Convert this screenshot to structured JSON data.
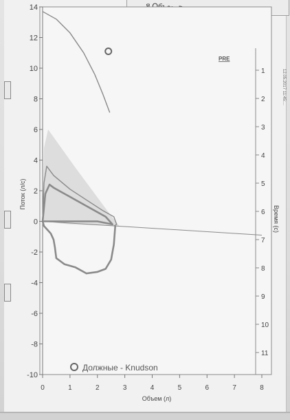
{
  "window": {
    "tab_title": "я Объем Время",
    "edge_text": "12.05.2017 11:45:...",
    "pre_label": "PRE"
  },
  "chart_data": {
    "type": "line",
    "xlabel": "Объем (л)",
    "ylabel": "Поток (л/с)",
    "y2label": "Время (с)",
    "xlim": [
      0,
      8
    ],
    "ylim": [
      -10,
      14
    ],
    "y2lim": [
      0,
      12
    ],
    "x_ticks": [
      "0",
      "1",
      "2",
      "3",
      "4",
      "5",
      "6",
      "7",
      "8"
    ],
    "y_ticks": [
      "-10",
      "-8",
      "-6",
      "-4",
      "-2",
      "0",
      "2",
      "4",
      "6",
      "8",
      "10",
      "12",
      "14"
    ],
    "y2_ticks": [
      "1",
      "2",
      "3",
      "4",
      "5",
      "6",
      "7",
      "8",
      "9",
      "10",
      "11"
    ],
    "legend": {
      "label": "Должные - Knudson",
      "placement": "bottom-left"
    },
    "colors": {
      "curve": "#8a8a8a",
      "fill": "#c8c8c8",
      "predicted_marker": "#666666"
    },
    "predicted_point": {
      "x": 2.4,
      "y": 11.1
    },
    "series": [
      {
        "type": "line",
        "x": [
          0.0,
          0.5,
          1.0,
          1.5,
          1.9,
          2.2,
          2.45
        ],
        "y": [
          13.7,
          13.2,
          12.3,
          11.0,
          9.6,
          8.3,
          7.1
        ]
      },
      {
        "type": "area",
        "x": [
          0.0,
          0.05,
          0.2,
          1.2,
          2.4,
          2.8,
          1.0,
          0.0
        ],
        "y": [
          0.0,
          4.8,
          6.0,
          3.5,
          0.6,
          -0.3,
          -0.2,
          0.0
        ]
      },
      {
        "type": "line",
        "x": [
          0.0,
          0.1,
          0.25,
          0.4,
          0.7,
          1.0,
          1.5,
          2.0,
          2.3,
          2.55,
          2.0,
          1.0,
          0.2,
          0.0
        ],
        "y": [
          0.0,
          1.8,
          2.4,
          2.2,
          1.9,
          1.6,
          1.1,
          0.6,
          0.3,
          -0.2,
          0.0,
          0.0,
          0.0,
          0.0
        ]
      },
      {
        "type": "line",
        "x": [
          0.0,
          0.05,
          0.15,
          0.4,
          1.0,
          1.6,
          2.2,
          2.6,
          2.7,
          2.6
        ],
        "y": [
          0.0,
          2.5,
          3.6,
          3.0,
          2.1,
          1.4,
          0.7,
          0.3,
          -0.2,
          -0.3
        ]
      },
      {
        "type": "line",
        "x": [
          2.65,
          2.6,
          2.5,
          2.3,
          2.0,
          1.6,
          1.2,
          0.8,
          0.5,
          0.45,
          0.4,
          0.3,
          0.05,
          0.0
        ],
        "y": [
          -0.3,
          -1.5,
          -2.5,
          -3.1,
          -3.3,
          -3.4,
          -3.0,
          -2.8,
          -2.4,
          -1.7,
          -1.2,
          -0.8,
          -0.3,
          0.0
        ]
      },
      {
        "type": "line",
        "x": [
          0.0,
          8.0
        ],
        "y": [
          0.0,
          -0.9
        ]
      }
    ]
  }
}
